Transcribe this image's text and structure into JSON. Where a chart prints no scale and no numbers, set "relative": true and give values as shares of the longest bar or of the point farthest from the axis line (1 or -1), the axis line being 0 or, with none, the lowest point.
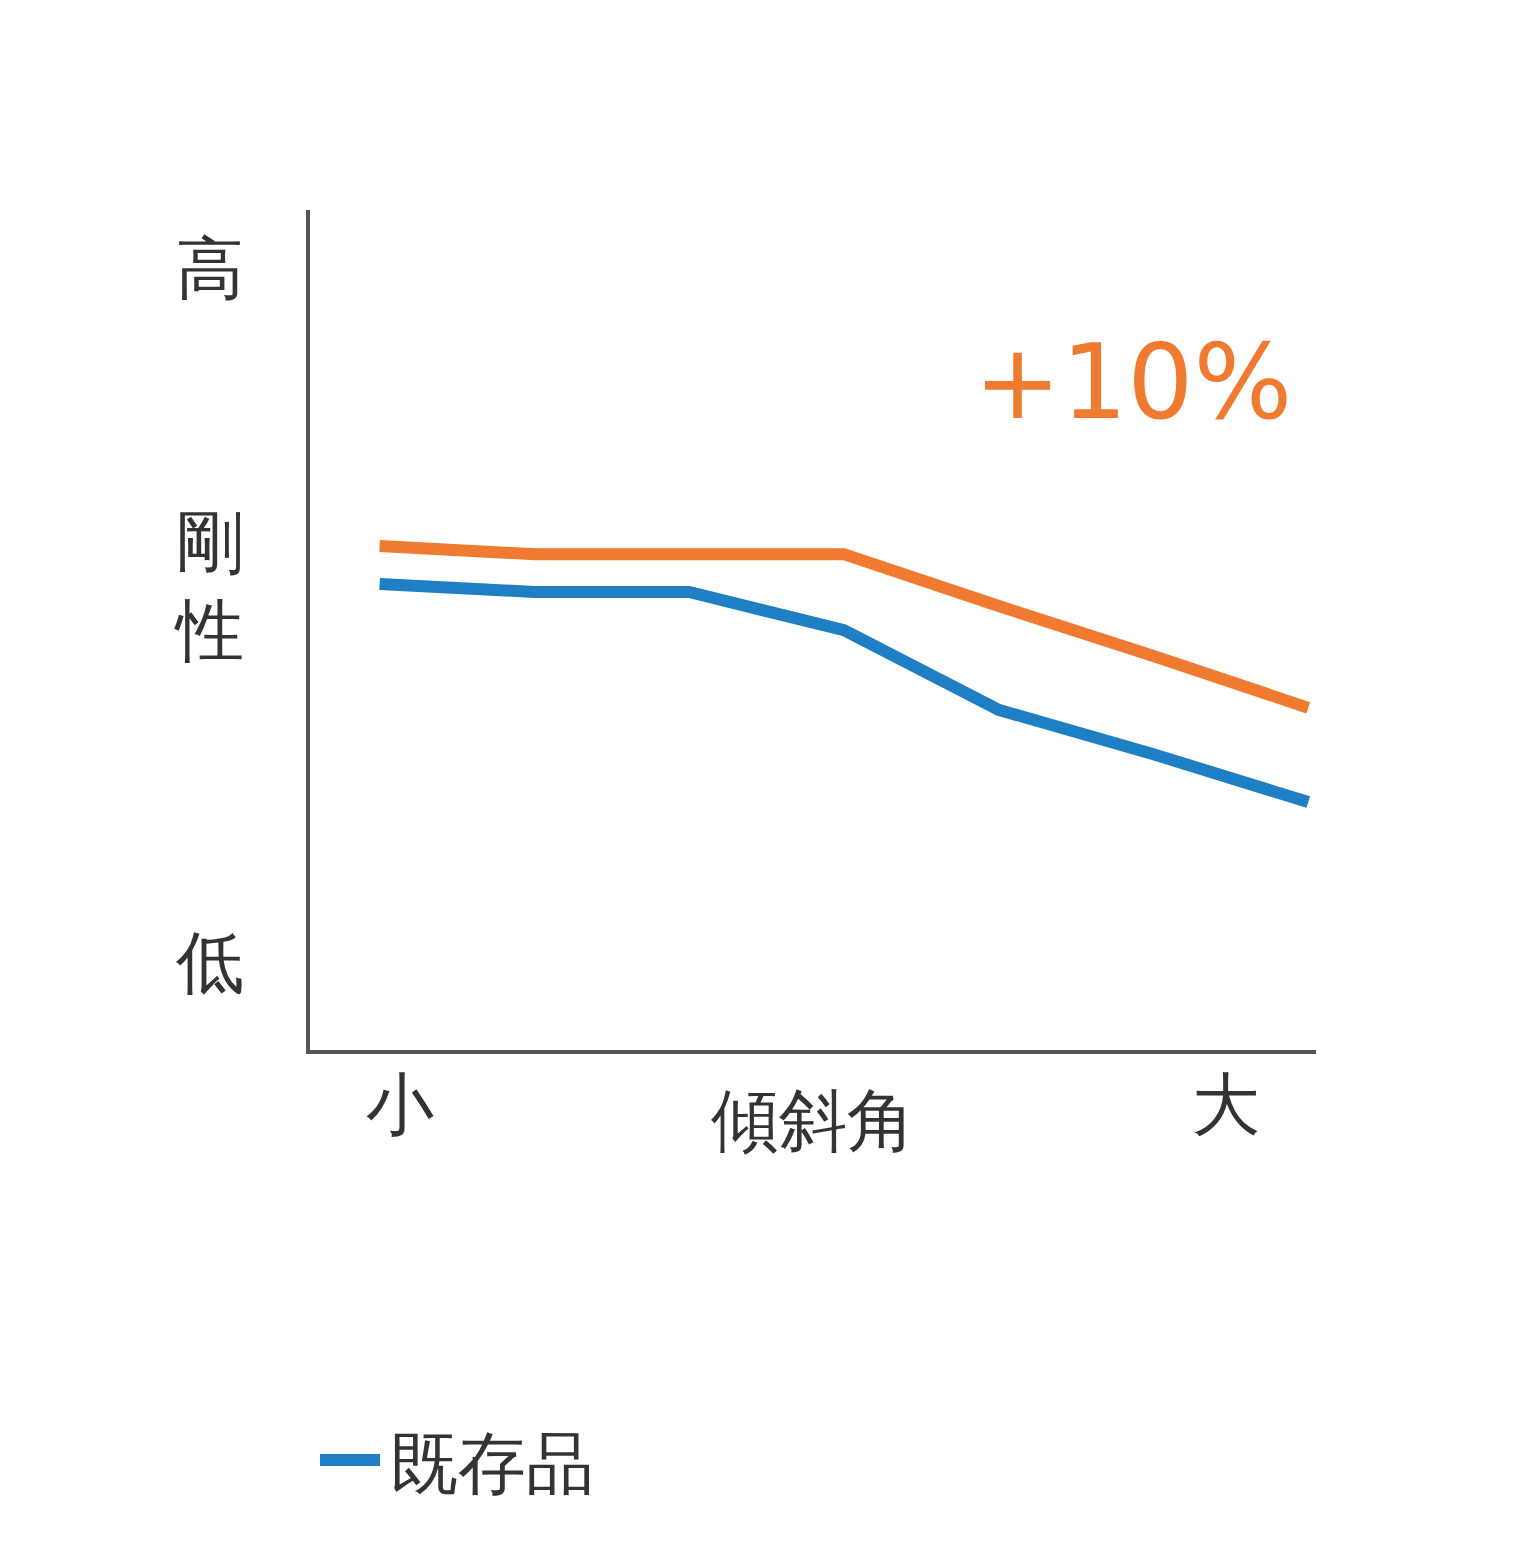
{
  "chart_data": {
    "type": "line",
    "relative": true,
    "xlabel": "傾斜角",
    "ylabel": "剛性",
    "categories": [
      null,
      null,
      null,
      null,
      null,
      null,
      null
    ],
    "series": [
      {
        "name": "既存品",
        "color": "#1f7fc4",
        "values": [
          0.925,
          0.909,
          0.909,
          0.833,
          0.675,
          0.587,
          0.492
        ]
      },
      {
        "color": "#f07a30",
        "values": [
          1,
          0.984,
          0.984,
          0.984,
          0.881,
          0.782,
          0.679
        ]
      }
    ],
    "annotations": [
      "+10%",
      "高",
      "低",
      "小",
      "大"
    ],
    "legend": "bottom",
    "marker": "none",
    "line_style": "solid"
  }
}
